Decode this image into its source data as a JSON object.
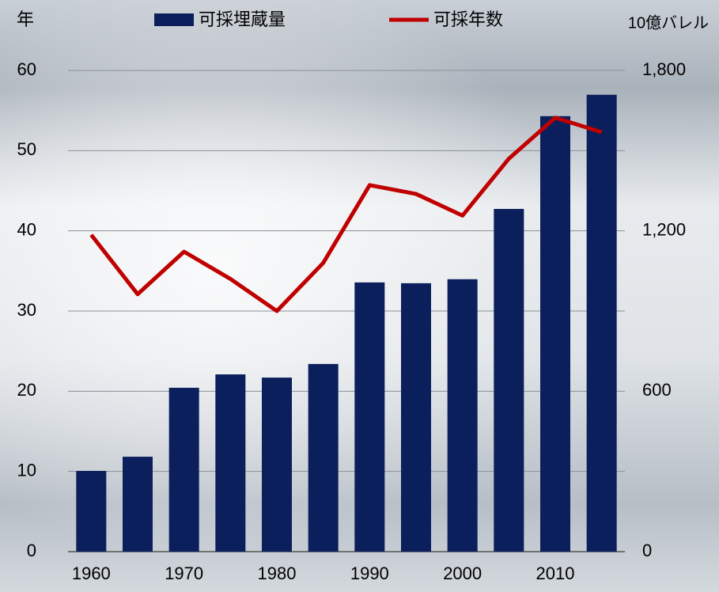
{
  "chart_data": {
    "type": "bar-line",
    "categories": [
      "1960",
      null,
      "1970",
      null,
      "1980",
      null,
      "1990",
      null,
      "2000",
      null,
      "2010",
      null
    ],
    "y_label": "年",
    "y2_label": "10億バレル",
    "ylim": [
      0,
      60
    ],
    "yticks": [
      0,
      10,
      20,
      30,
      40,
      50,
      60
    ],
    "y2lim": [
      0,
      1800
    ],
    "y2ticks": [
      0,
      600,
      {
        "value": 1200,
        "label": "1,200"
      },
      {
        "value": 1800,
        "label": "1,800"
      }
    ],
    "grid": true,
    "series": [
      {
        "name": "可採埋蔵量",
        "type": "bar",
        "axis": "y2",
        "color": "#0a1f5c",
        "values": [
          302,
          355,
          613,
          663,
          651,
          702,
          1007,
          1004,
          1019,
          1282,
          1629,
          1709
        ]
      },
      {
        "name": "可採年数",
        "type": "line",
        "axis": "y",
        "color": "#c00000",
        "values": [
          39.5,
          32.1,
          37.4,
          34.0,
          30.0,
          36.0,
          45.7,
          44.6,
          41.9,
          49.0,
          54.1,
          52.3
        ]
      }
    ]
  }
}
